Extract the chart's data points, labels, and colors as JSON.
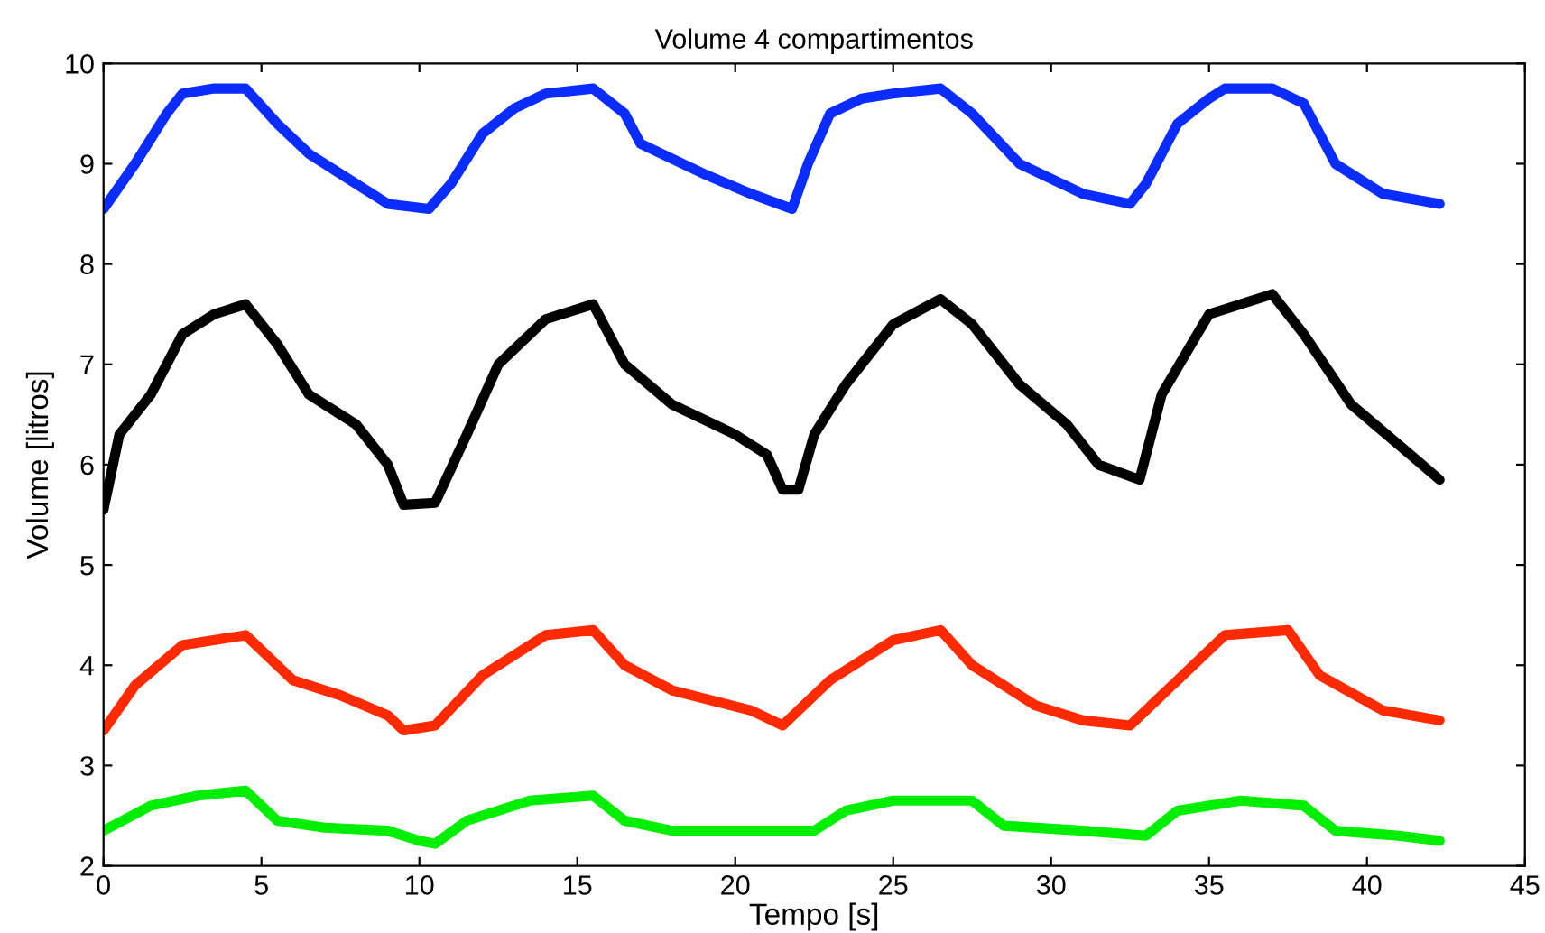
{
  "chart_data": {
    "type": "line",
    "title": "Volume 4 compartimentos",
    "xlabel": "Tempo [s]",
    "ylabel": "Volume [litros]",
    "xlim": [
      0,
      45
    ],
    "ylim": [
      2,
      10
    ],
    "xticks": [
      0,
      5,
      10,
      15,
      20,
      25,
      30,
      35,
      40,
      45
    ],
    "yticks": [
      2,
      3,
      4,
      5,
      6,
      7,
      8,
      9,
      10
    ],
    "grid": false,
    "legend": false,
    "marker": "none",
    "line_style": "solid",
    "series": [
      {
        "color": "#0a2cff",
        "x": [
          0,
          1,
          2,
          2.5,
          3.5,
          4.5,
          5.5,
          6.5,
          8,
          9,
          10.3,
          11,
          12,
          13,
          14,
          15.5,
          16.5,
          17,
          19,
          20.5,
          21.8,
          22.3,
          23,
          24,
          25,
          26.5,
          27.5,
          29,
          31,
          32.5,
          33,
          34,
          35,
          35.5,
          37,
          38,
          39,
          40.5,
          42.3
        ],
        "values": [
          8.55,
          9.0,
          9.5,
          9.7,
          9.75,
          9.75,
          9.4,
          9.1,
          8.8,
          8.6,
          8.55,
          8.8,
          9.3,
          9.55,
          9.7,
          9.75,
          9.5,
          9.2,
          8.9,
          8.7,
          8.55,
          9.0,
          9.5,
          9.65,
          9.7,
          9.75,
          9.5,
          9.0,
          8.7,
          8.6,
          8.8,
          9.4,
          9.65,
          9.75,
          9.75,
          9.6,
          9.0,
          8.7,
          8.6
        ]
      },
      {
        "color": "#000000",
        "x": [
          0,
          0.5,
          1.5,
          2.5,
          3.5,
          4.5,
          5.5,
          6.5,
          8,
          9,
          9.5,
          10.5,
          11.5,
          12.5,
          14,
          15.5,
          16.5,
          18,
          20,
          21,
          21.5,
          22,
          22.5,
          23.5,
          25,
          26.5,
          27.5,
          29,
          30.5,
          31.5,
          32.8,
          33.5,
          35,
          37,
          38,
          39.5,
          41,
          42.3
        ],
        "values": [
          5.55,
          6.3,
          6.7,
          7.3,
          7.5,
          7.6,
          7.2,
          6.7,
          6.4,
          6.0,
          5.6,
          5.62,
          6.3,
          7.0,
          7.45,
          7.6,
          7.0,
          6.6,
          6.3,
          6.1,
          5.75,
          5.75,
          6.3,
          6.8,
          7.4,
          7.65,
          7.4,
          6.8,
          6.4,
          6.0,
          5.85,
          6.7,
          7.5,
          7.7,
          7.3,
          6.6,
          6.2,
          5.85
        ]
      },
      {
        "color": "#ff2a00",
        "x": [
          0,
          1,
          2.5,
          4.5,
          6,
          7.5,
          9,
          9.5,
          10.5,
          12,
          14,
          15.5,
          16.5,
          18,
          20.5,
          21.5,
          23,
          25,
          26.5,
          27.5,
          29.5,
          31,
          32.5,
          34,
          35.5,
          37.5,
          38.5,
          40.5,
          42.3
        ],
        "values": [
          3.35,
          3.8,
          4.2,
          4.3,
          3.85,
          3.7,
          3.5,
          3.35,
          3.4,
          3.9,
          4.3,
          4.35,
          4.0,
          3.75,
          3.55,
          3.4,
          3.85,
          4.25,
          4.35,
          4.0,
          3.6,
          3.45,
          3.4,
          3.85,
          4.3,
          4.35,
          3.9,
          3.55,
          3.45
        ]
      },
      {
        "color": "#00ee00",
        "x": [
          0,
          1.5,
          3,
          4.5,
          5.5,
          7,
          9,
          10,
          10.5,
          11.5,
          13.5,
          15.5,
          16.5,
          18,
          21,
          22.5,
          23.5,
          25,
          27.5,
          28.5,
          31,
          33,
          34,
          36,
          38,
          39,
          41,
          42.3
        ],
        "values": [
          2.35,
          2.6,
          2.7,
          2.75,
          2.45,
          2.38,
          2.35,
          2.25,
          2.22,
          2.45,
          2.65,
          2.7,
          2.45,
          2.35,
          2.35,
          2.35,
          2.55,
          2.65,
          2.65,
          2.4,
          2.35,
          2.3,
          2.55,
          2.65,
          2.6,
          2.35,
          2.3,
          2.25
        ]
      }
    ]
  }
}
